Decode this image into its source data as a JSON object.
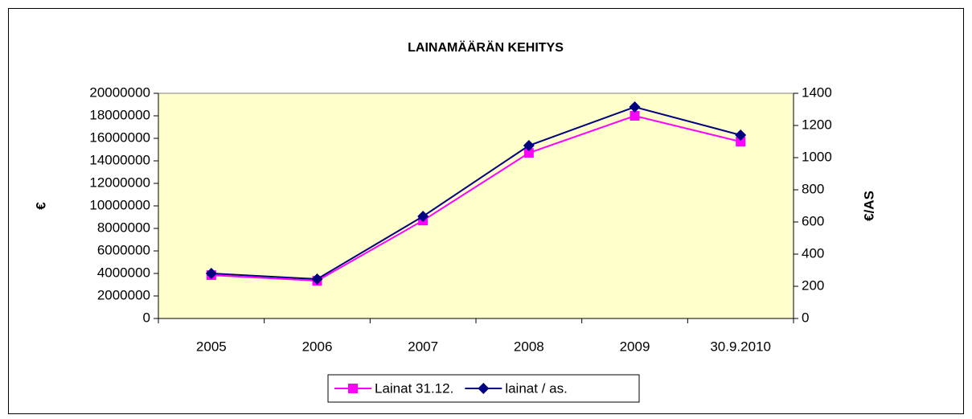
{
  "chart_data": {
    "type": "line",
    "title": "LAINAMÄÄRÄN KEHITYS",
    "categories": [
      "2005",
      "2006",
      "2007",
      "2008",
      "2009",
      "30.9.2010"
    ],
    "series": [
      {
        "name": "Lainat 31.12.",
        "color": "#ff00ff",
        "marker": "square",
        "values": [
          3850000,
          3350000,
          8700000,
          14700000,
          18000000,
          15700000
        ]
      },
      {
        "name": "lainat / as.",
        "color": "#000080",
        "marker": "diamond",
        "axis": "y2",
        "values": [
          280,
          245,
          635,
          1075,
          1315,
          1140
        ]
      }
    ],
    "ylabel": "€",
    "y2label": "€/AS",
    "ylim": [
      0,
      20000000
    ],
    "yticks": [
      0,
      2000000,
      4000000,
      6000000,
      8000000,
      10000000,
      12000000,
      14000000,
      16000000,
      18000000,
      20000000
    ],
    "y2lim": [
      0,
      1400
    ],
    "y2ticks": [
      0,
      200,
      400,
      600,
      800,
      1000,
      1200,
      1400
    ],
    "plot_background": "#ffffcc",
    "legend": "bottom"
  }
}
